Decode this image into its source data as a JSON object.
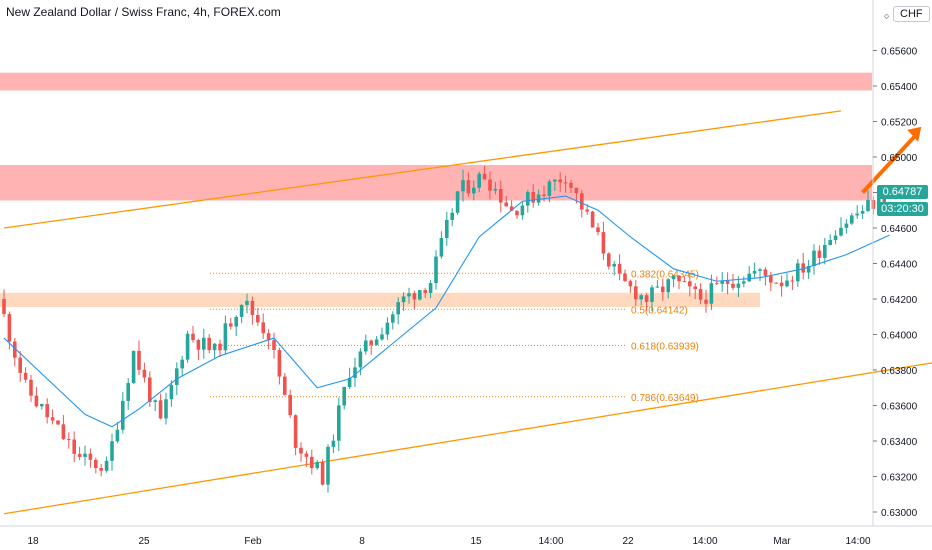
{
  "header": {
    "title": "New Zealand Dollar / Swiss Franc, 4h, FOREX.com"
  },
  "axis": {
    "currency": "CHF",
    "last_price": "0.64787",
    "countdown": "03:20:30"
  },
  "colors": {
    "up": "#26a69a",
    "down": "#ef5350",
    "ma": "#2196f3",
    "channel": "#ff9800",
    "resistance_zone": "#ffb3b3",
    "support_zone": "#ffd9bf",
    "fib": "#e8830b",
    "arrow": "#ff6d00"
  },
  "chart_data": {
    "type": "candlestick",
    "symbol": "NZDCHF",
    "timeframe": "4h",
    "x_ticks": [
      "18",
      "25",
      "Feb",
      "8",
      "15",
      "14:00",
      "22",
      "14:00",
      "Mar",
      "14:00"
    ],
    "y_ticks": [
      "0.65600",
      "0.65400",
      "0.65200",
      "0.65000",
      "0.64800",
      "0.64600",
      "0.64400",
      "0.64200",
      "0.64000",
      "0.63800",
      "0.63600",
      "0.63400",
      "0.63200",
      "0.63000"
    ],
    "ylim": [
      0.62975,
      0.65885
    ],
    "grid": false,
    "fib_levels": [
      {
        "label": "0.382(0.64345)",
        "value": 0.64345
      },
      {
        "label": "0.5(0.64142)",
        "value": 0.64142
      },
      {
        "label": "0.618(0.63939)",
        "value": 0.63939
      },
      {
        "label": "0.786(0.63649)",
        "value": 0.63649
      }
    ],
    "zones": [
      {
        "type": "resistance",
        "low": 0.65375,
        "high": 0.65475
      },
      {
        "type": "resistance",
        "low": 0.64755,
        "high": 0.64955
      },
      {
        "type": "support",
        "low": 0.64155,
        "high": 0.64235
      }
    ],
    "anchors": [
      [
        0,
        0.642
      ],
      [
        5,
        0.637
      ],
      [
        10,
        0.635
      ],
      [
        15,
        0.633
      ],
      [
        20,
        0.6325
      ],
      [
        25,
        0.639
      ],
      [
        30,
        0.635
      ],
      [
        35,
        0.64
      ],
      [
        40,
        0.639
      ],
      [
        45,
        0.642
      ],
      [
        50,
        0.64
      ],
      [
        55,
        0.634
      ],
      [
        60,
        0.632
      ],
      [
        65,
        0.638
      ],
      [
        70,
        0.64
      ],
      [
        75,
        0.642
      ],
      [
        80,
        0.643
      ],
      [
        85,
        0.648
      ],
      [
        90,
        0.649
      ],
      [
        95,
        0.647
      ],
      [
        100,
        0.648
      ],
      [
        105,
        0.649
      ],
      [
        110,
        0.646
      ],
      [
        115,
        0.643
      ],
      [
        120,
        0.642
      ],
      [
        125,
        0.643
      ],
      [
        130,
        0.642
      ],
      [
        135,
        0.643
      ],
      [
        140,
        0.6435
      ],
      [
        145,
        0.643
      ],
      [
        150,
        0.644
      ],
      [
        155,
        0.646
      ],
      [
        160,
        0.647
      ],
      [
        164,
        0.6478
      ]
    ],
    "moving_average": [
      [
        0,
        0.6398
      ],
      [
        8,
        0.6375
      ],
      [
        15,
        0.6355
      ],
      [
        20,
        0.6348
      ],
      [
        25,
        0.6358
      ],
      [
        32,
        0.6375
      ],
      [
        40,
        0.6388
      ],
      [
        50,
        0.6398
      ],
      [
        58,
        0.637
      ],
      [
        64,
        0.6375
      ],
      [
        72,
        0.6395
      ],
      [
        80,
        0.6415
      ],
      [
        88,
        0.6455
      ],
      [
        96,
        0.6475
      ],
      [
        104,
        0.6478
      ],
      [
        110,
        0.647
      ],
      [
        116,
        0.6455
      ],
      [
        124,
        0.6437
      ],
      [
        132,
        0.643
      ],
      [
        140,
        0.6432
      ],
      [
        148,
        0.6437
      ],
      [
        156,
        0.6445
      ],
      [
        164,
        0.6456
      ]
    ],
    "channel_lines": [
      {
        "from": [
          "0",
          0.646
        ],
        "to": [
          "155",
          0.6526
        ]
      },
      {
        "from": [
          "0",
          0.6299
        ],
        "to": [
          "190",
          0.6393
        ]
      }
    ],
    "arrow": {
      "from": [
        "159",
        0.648
      ],
      "to": [
        "168",
        0.6517
      ]
    },
    "candles_visible": 164,
    "last_price": 0.64787
  }
}
